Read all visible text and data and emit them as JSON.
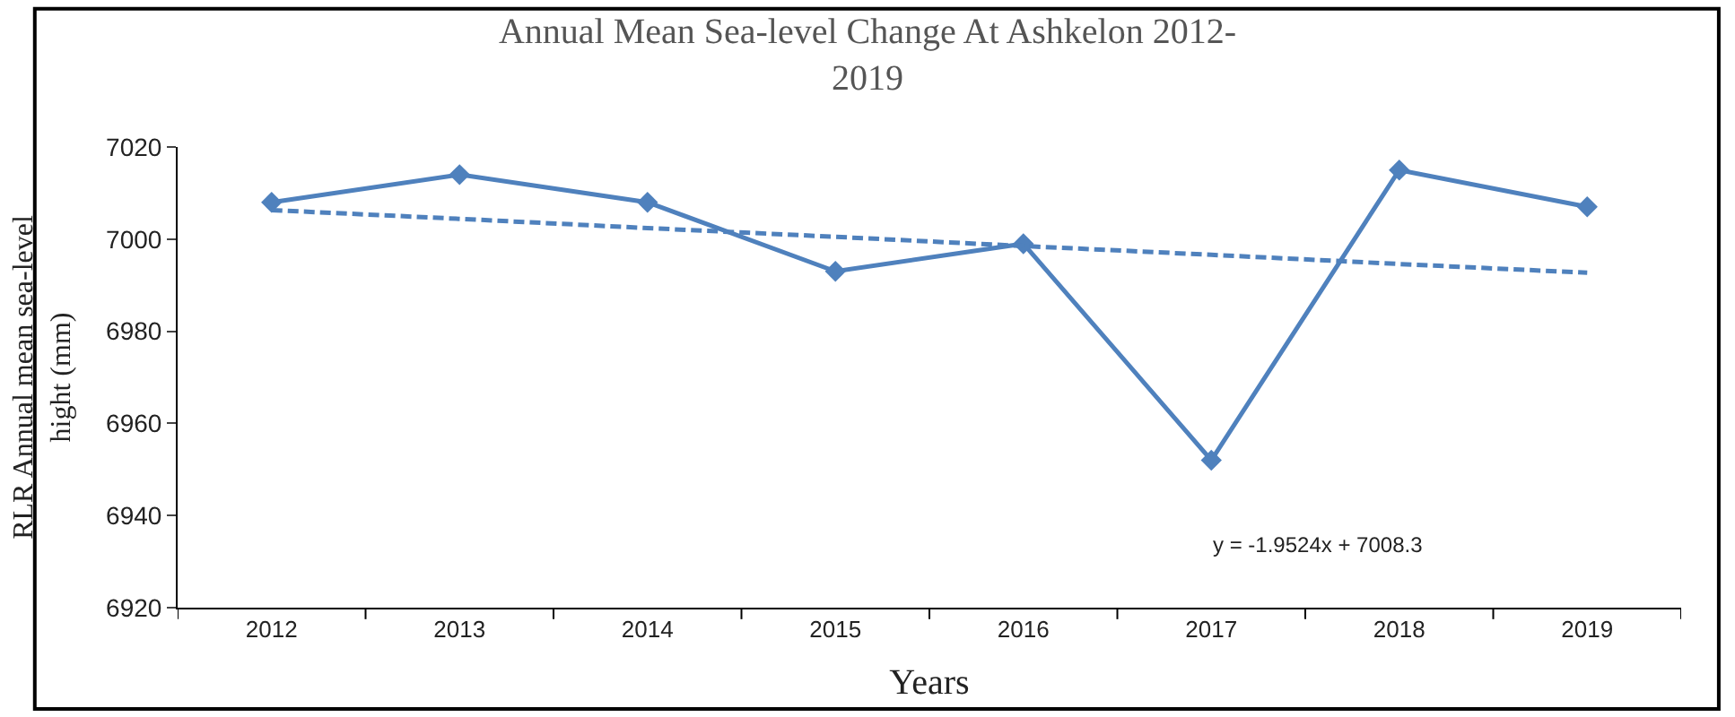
{
  "chart_data": {
    "type": "line",
    "title": "Annual Mean Sea-level Change At Ashkelon 2012-\n2019",
    "xlabel": "Years",
    "ylabel": "RLR Annual mean sea-level\nhight (mm)",
    "categories": [
      "2012",
      "2013",
      "2014",
      "2015",
      "2016",
      "2017",
      "2018",
      "2019"
    ],
    "series": [
      {
        "color": "#4f81bd",
        "marker": "diamond",
        "line_style": "solid",
        "values": [
          7008,
          7014,
          7008,
          6993,
          6999,
          6952,
          7015,
          7007
        ]
      },
      {
        "type": "line",
        "color": "#4f81bd",
        "marker": "none",
        "line_style": "dashed",
        "values": [
          7006.3,
          7004.4,
          7002.4,
          7000.5,
          6998.5,
          6996.6,
          6994.6,
          6992.7
        ]
      }
    ],
    "ylim": [
      6920,
      7020
    ],
    "yticks": [
      6920,
      6940,
      6960,
      6980,
      7000,
      7020
    ],
    "legend": false,
    "annotations": [
      "y = -1.9524x + 7008.3"
    ]
  }
}
